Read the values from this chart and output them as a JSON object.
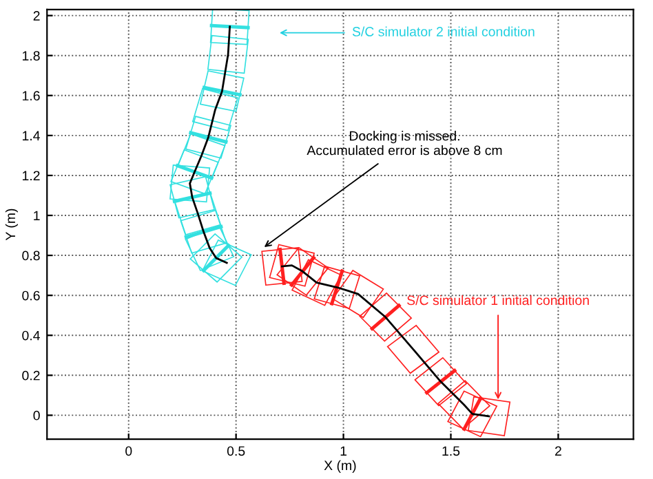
{
  "chart_data": {
    "type": "line",
    "xlabel": "X (m)",
    "ylabel": "Y (m)",
    "xlim": [
      -0.38,
      2.35
    ],
    "ylim": [
      -0.12,
      2.03
    ],
    "xticks": [
      0,
      0.5,
      1,
      1.5,
      2
    ],
    "yticks": [
      0,
      0.2,
      0.4,
      0.6,
      0.8,
      1,
      1.2,
      1.4,
      1.6,
      1.8,
      2
    ],
    "grid": true,
    "legend": false,
    "marker": "diamond",
    "line_style": "solid",
    "series": [
      {
        "color": "#000000",
        "x": [
          0.471,
          0.463,
          0.435,
          0.403,
          0.371,
          0.339,
          0.307,
          0.285,
          0.296,
          0.322,
          0.349,
          0.377,
          0.407,
          0.457
        ],
        "values": [
          1.945,
          1.806,
          1.622,
          1.529,
          1.391,
          1.299,
          1.218,
          1.16,
          1.091,
          1.01,
          0.918,
          0.837,
          0.787,
          0.763
        ]
      },
      {
        "color": "#000000",
        "x": [
          0.714,
          0.76,
          0.81,
          0.875,
          0.97,
          1.068,
          1.196,
          1.325,
          1.453,
          1.561,
          1.6,
          1.678
        ],
        "values": [
          0.745,
          0.75,
          0.72,
          0.664,
          0.64,
          0.607,
          0.491,
          0.33,
          0.168,
          0.053,
          0.007,
          -0.005
        ]
      }
    ],
    "annotations": [
      "S/C simulator 2 initial condition",
      {
        "text": "Docking is missed.\nAccumulated error is above 8 cm",
        "x": 0.617,
        "y": 0.83
      },
      {
        "text": "S/C simulator 1 initial condition",
        "x": 1.72,
        "y": 0.06
      }
    ]
  }
}
